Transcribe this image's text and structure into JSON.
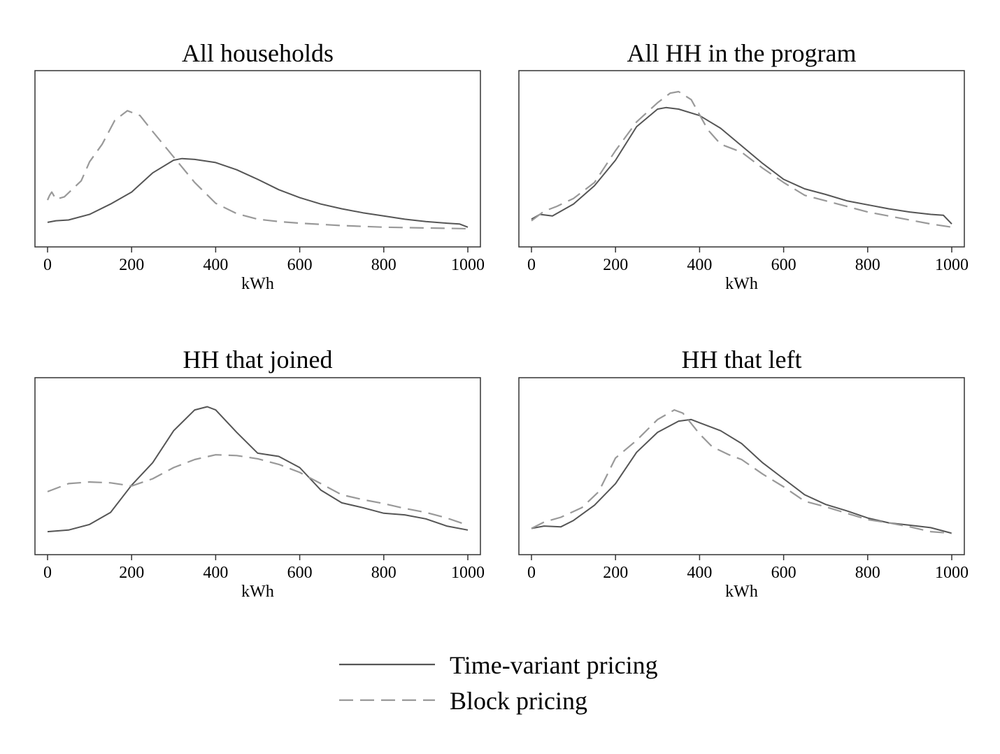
{
  "chart_data": [
    {
      "type": "line",
      "title": "All households",
      "xlabel": "kWh",
      "ylabel": "",
      "xlim": [
        0,
        1000
      ],
      "ylim": [
        0,
        1
      ],
      "x_ticks": [
        "0",
        "200",
        "400",
        "600",
        "800",
        "1000"
      ],
      "y_ticks_visible": false,
      "grid": false,
      "series": [
        {
          "name": "Time-variant pricing",
          "style": "solid",
          "color": "#555555",
          "points": [
            [
              0,
              0.11
            ],
            [
              20,
              0.12
            ],
            [
              50,
              0.125
            ],
            [
              100,
              0.16
            ],
            [
              150,
              0.225
            ],
            [
              200,
              0.3
            ],
            [
              250,
              0.42
            ],
            [
              300,
              0.5
            ],
            [
              320,
              0.51
            ],
            [
              350,
              0.505
            ],
            [
              400,
              0.485
            ],
            [
              450,
              0.44
            ],
            [
              500,
              0.38
            ],
            [
              550,
              0.315
            ],
            [
              600,
              0.265
            ],
            [
              650,
              0.225
            ],
            [
              700,
              0.195
            ],
            [
              750,
              0.17
            ],
            [
              800,
              0.15
            ],
            [
              850,
              0.13
            ],
            [
              900,
              0.115
            ],
            [
              950,
              0.105
            ],
            [
              980,
              0.1
            ],
            [
              1000,
              0.08
            ]
          ]
        },
        {
          "name": "Block pricing",
          "style": "dashed",
          "color": "#999999",
          "points": [
            [
              0,
              0.25
            ],
            [
              5,
              0.28
            ],
            [
              10,
              0.3
            ],
            [
              20,
              0.255
            ],
            [
              40,
              0.27
            ],
            [
              80,
              0.37
            ],
            [
              100,
              0.49
            ],
            [
              130,
              0.6
            ],
            [
              160,
              0.75
            ],
            [
              190,
              0.81
            ],
            [
              220,
              0.78
            ],
            [
              250,
              0.68
            ],
            [
              300,
              0.52
            ],
            [
              350,
              0.36
            ],
            [
              400,
              0.23
            ],
            [
              450,
              0.165
            ],
            [
              500,
              0.13
            ],
            [
              550,
              0.115
            ],
            [
              600,
              0.105
            ],
            [
              700,
              0.09
            ],
            [
              800,
              0.08
            ],
            [
              900,
              0.075
            ],
            [
              1000,
              0.07
            ]
          ]
        }
      ]
    },
    {
      "type": "line",
      "title": "All HH in the program",
      "xlabel": "kWh",
      "ylabel": "",
      "xlim": [
        0,
        1000
      ],
      "ylim": [
        0,
        1
      ],
      "x_ticks": [
        "0",
        "200",
        "400",
        "600",
        "800",
        "1000"
      ],
      "y_ticks_visible": false,
      "grid": false,
      "series": [
        {
          "name": "Time-variant pricing",
          "style": "solid",
          "color": "#555555",
          "points": [
            [
              0,
              0.13
            ],
            [
              20,
              0.16
            ],
            [
              50,
              0.15
            ],
            [
              100,
              0.225
            ],
            [
              150,
              0.34
            ],
            [
              200,
              0.5
            ],
            [
              250,
              0.71
            ],
            [
              300,
              0.82
            ],
            [
              320,
              0.83
            ],
            [
              350,
              0.82
            ],
            [
              400,
              0.78
            ],
            [
              450,
              0.7
            ],
            [
              500,
              0.59
            ],
            [
              550,
              0.48
            ],
            [
              600,
              0.38
            ],
            [
              650,
              0.32
            ],
            [
              700,
              0.285
            ],
            [
              750,
              0.245
            ],
            [
              800,
              0.22
            ],
            [
              850,
              0.195
            ],
            [
              900,
              0.175
            ],
            [
              950,
              0.16
            ],
            [
              980,
              0.155
            ],
            [
              1000,
              0.1
            ]
          ]
        },
        {
          "name": "Block pricing",
          "style": "dashed",
          "color": "#999999",
          "points": [
            [
              0,
              0.12
            ],
            [
              30,
              0.18
            ],
            [
              60,
              0.21
            ],
            [
              100,
              0.26
            ],
            [
              150,
              0.36
            ],
            [
              200,
              0.56
            ],
            [
              250,
              0.74
            ],
            [
              300,
              0.86
            ],
            [
              330,
              0.92
            ],
            [
              350,
              0.93
            ],
            [
              380,
              0.88
            ],
            [
              420,
              0.69
            ],
            [
              450,
              0.6
            ],
            [
              500,
              0.55
            ],
            [
              550,
              0.45
            ],
            [
              600,
              0.36
            ],
            [
              650,
              0.28
            ],
            [
              700,
              0.245
            ],
            [
              750,
              0.21
            ],
            [
              800,
              0.175
            ],
            [
              850,
              0.15
            ],
            [
              900,
              0.125
            ],
            [
              950,
              0.1
            ],
            [
              1000,
              0.08
            ]
          ]
        }
      ]
    },
    {
      "type": "line",
      "title": "HH that joined",
      "xlabel": "kWh",
      "ylabel": "",
      "xlim": [
        0,
        1000
      ],
      "ylim": [
        0,
        1
      ],
      "x_ticks": [
        "0",
        "200",
        "400",
        "600",
        "800",
        "1000"
      ],
      "y_ticks_visible": false,
      "grid": false,
      "series": [
        {
          "name": "Time-variant pricing",
          "style": "solid",
          "color": "#555555",
          "points": [
            [
              0,
              0.1
            ],
            [
              50,
              0.11
            ],
            [
              100,
              0.145
            ],
            [
              150,
              0.22
            ],
            [
              200,
              0.39
            ],
            [
              250,
              0.53
            ],
            [
              300,
              0.73
            ],
            [
              350,
              0.86
            ],
            [
              380,
              0.88
            ],
            [
              400,
              0.86
            ],
            [
              450,
              0.72
            ],
            [
              500,
              0.59
            ],
            [
              550,
              0.57
            ],
            [
              600,
              0.5
            ],
            [
              650,
              0.36
            ],
            [
              700,
              0.28
            ],
            [
              750,
              0.25
            ],
            [
              800,
              0.215
            ],
            [
              850,
              0.205
            ],
            [
              900,
              0.18
            ],
            [
              950,
              0.135
            ],
            [
              1000,
              0.11
            ]
          ]
        },
        {
          "name": "Block pricing",
          "style": "dashed",
          "color": "#999999",
          "points": [
            [
              0,
              0.35
            ],
            [
              50,
              0.4
            ],
            [
              100,
              0.41
            ],
            [
              150,
              0.405
            ],
            [
              200,
              0.385
            ],
            [
              250,
              0.43
            ],
            [
              300,
              0.5
            ],
            [
              350,
              0.55
            ],
            [
              400,
              0.58
            ],
            [
              450,
              0.575
            ],
            [
              500,
              0.555
            ],
            [
              550,
              0.52
            ],
            [
              600,
              0.47
            ],
            [
              650,
              0.4
            ],
            [
              700,
              0.33
            ],
            [
              750,
              0.3
            ],
            [
              800,
              0.275
            ],
            [
              850,
              0.245
            ],
            [
              900,
              0.22
            ],
            [
              950,
              0.185
            ],
            [
              1000,
              0.14
            ]
          ]
        }
      ]
    },
    {
      "type": "line",
      "title": "HH that left",
      "xlabel": "kWh",
      "ylabel": "",
      "xlim": [
        0,
        1000
      ],
      "ylim": [
        0,
        1
      ],
      "x_ticks": [
        "0",
        "200",
        "400",
        "600",
        "800",
        "1000"
      ],
      "y_ticks_visible": false,
      "grid": false,
      "series": [
        {
          "name": "Time-variant pricing",
          "style": "solid",
          "color": "#555555",
          "points": [
            [
              0,
              0.12
            ],
            [
              30,
              0.135
            ],
            [
              70,
              0.13
            ],
            [
              100,
              0.17
            ],
            [
              150,
              0.265
            ],
            [
              200,
              0.4
            ],
            [
              250,
              0.595
            ],
            [
              300,
              0.72
            ],
            [
              350,
              0.79
            ],
            [
              380,
              0.8
            ],
            [
              400,
              0.78
            ],
            [
              450,
              0.73
            ],
            [
              500,
              0.65
            ],
            [
              550,
              0.53
            ],
            [
              600,
              0.43
            ],
            [
              650,
              0.33
            ],
            [
              700,
              0.27
            ],
            [
              750,
              0.23
            ],
            [
              800,
              0.185
            ],
            [
              850,
              0.155
            ],
            [
              900,
              0.14
            ],
            [
              950,
              0.125
            ],
            [
              1000,
              0.09
            ]
          ]
        },
        {
          "name": "Block pricing",
          "style": "dashed",
          "color": "#999999",
          "points": [
            [
              0,
              0.12
            ],
            [
              30,
              0.16
            ],
            [
              70,
              0.19
            ],
            [
              120,
              0.25
            ],
            [
              160,
              0.35
            ],
            [
              200,
              0.56
            ],
            [
              250,
              0.67
            ],
            [
              300,
              0.8
            ],
            [
              340,
              0.86
            ],
            [
              360,
              0.84
            ],
            [
              400,
              0.71
            ],
            [
              430,
              0.63
            ],
            [
              470,
              0.58
            ],
            [
              500,
              0.55
            ],
            [
              550,
              0.46
            ],
            [
              600,
              0.38
            ],
            [
              650,
              0.29
            ],
            [
              700,
              0.255
            ],
            [
              750,
              0.215
            ],
            [
              800,
              0.175
            ],
            [
              850,
              0.155
            ],
            [
              900,
              0.13
            ],
            [
              950,
              0.1
            ],
            [
              1000,
              0.09
            ]
          ]
        }
      ]
    }
  ],
  "legend": {
    "placement": "bottom-center",
    "items": [
      {
        "label": "Time-variant pricing",
        "style": "solid",
        "color": "#555555"
      },
      {
        "label": "Block pricing",
        "style": "dashed",
        "color": "#999999"
      }
    ]
  },
  "colors": {
    "frame": "#333333",
    "solid_series": "#555555",
    "dashed_series": "#999999"
  }
}
